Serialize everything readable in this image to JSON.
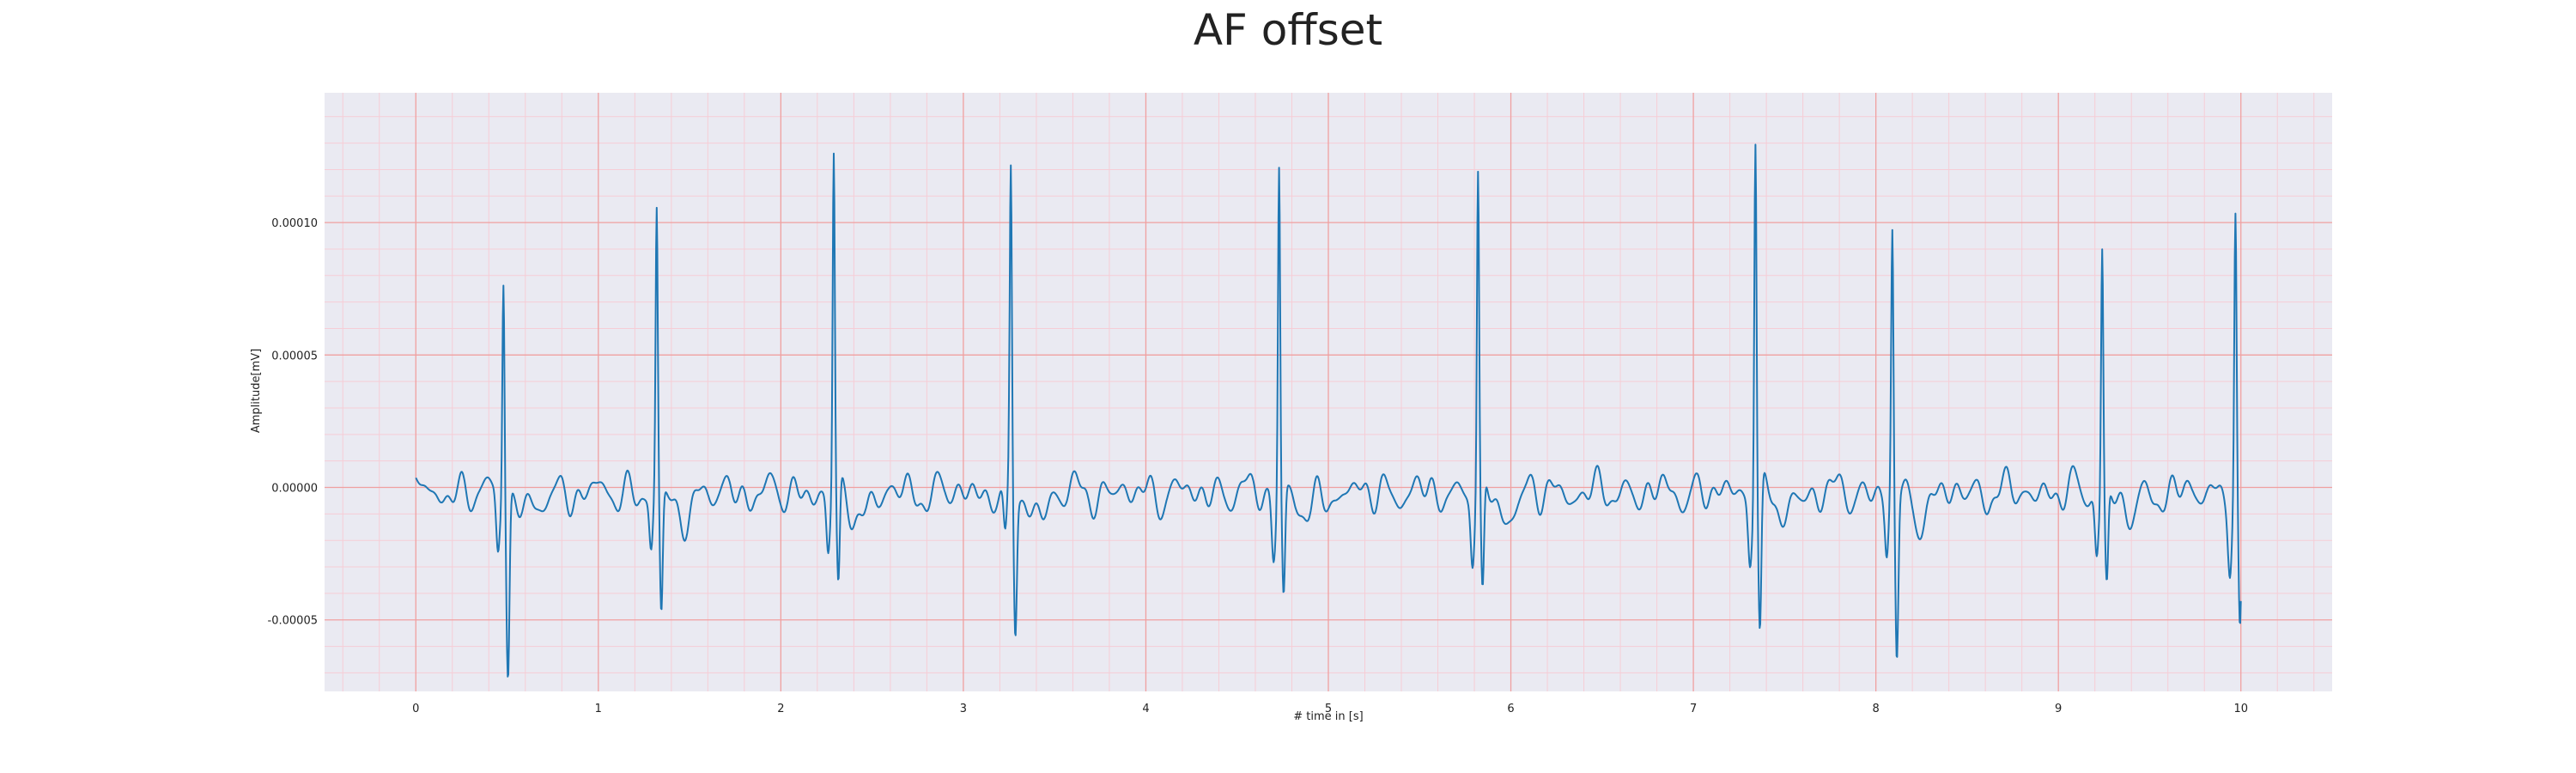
{
  "chart_data": {
    "type": "line",
    "title": "AF offset",
    "xlabel": "# time in [s]",
    "ylabel": "Amplitude[mV]",
    "xlim": [
      -0.5,
      10.5
    ],
    "ylim": [
      -7.7e-05,
      0.000149
    ],
    "x_ticks": [
      0,
      1,
      2,
      3,
      4,
      5,
      6,
      7,
      8,
      9,
      10
    ],
    "x_tick_labels": [
      "0",
      "1",
      "2",
      "3",
      "4",
      "5",
      "6",
      "7",
      "8",
      "9",
      "10"
    ],
    "y_ticks": [
      -5e-05,
      0.0,
      5e-05,
      0.0001
    ],
    "y_tick_labels": [
      "-0.00005",
      "0.00000",
      "0.00005",
      "0.00010"
    ],
    "grid": {
      "major": true,
      "minor": true,
      "major_color": "#f0a0a0",
      "minor_color": "#f6cdd6"
    },
    "background": "#eaeaf2",
    "series": [
      {
        "color": "#1f77b4",
        "beats": [
          {
            "t": 0.48,
            "peak": 8.5e-05,
            "trough": -6.7e-05
          },
          {
            "t": 1.32,
            "peak": 0.000104,
            "trough": -4.8e-05
          },
          {
            "t": 2.29,
            "peak": 0.000126,
            "trough": -4e-05
          },
          {
            "t": 3.26,
            "peak": 0.000118,
            "trough": -5.2e-05
          },
          {
            "t": 4.73,
            "peak": 0.000125,
            "trough": -4e-05
          },
          {
            "t": 5.82,
            "peak": 0.000121,
            "trough": -4.4e-05
          },
          {
            "t": 7.34,
            "peak": 0.000139,
            "trough": -5.5e-05
          },
          {
            "t": 8.09,
            "peak": 9.8e-05,
            "trough": -6.2e-05
          },
          {
            "t": 9.24,
            "peak": 9.4e-05,
            "trough": -3.6e-05
          },
          {
            "t": 9.97,
            "peak": 0.000104,
            "trough": -5.6e-05
          }
        ],
        "baseline_noise_amplitude": 1.2e-05
      }
    ]
  }
}
